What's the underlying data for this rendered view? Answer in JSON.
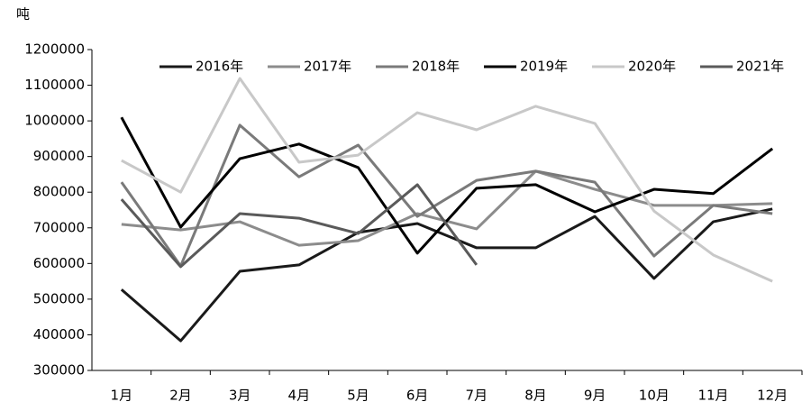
{
  "chart_data": {
    "type": "line",
    "unit_label": "吨",
    "categories": [
      "1月",
      "2月",
      "3月",
      "4月",
      "5月",
      "6月",
      "7月",
      "8月",
      "9月",
      "10月",
      "11月",
      "12月"
    ],
    "series": [
      {
        "name": "2016年",
        "color": "#1a1a1a",
        "values": [
          527000,
          383000,
          578000,
          596000,
          687000,
          712000,
          644000,
          644000,
          732000,
          558000,
          717000,
          753000
        ]
      },
      {
        "name": "2017年",
        "color": "#8c8c8c",
        "values": [
          710000,
          694000,
          717000,
          651000,
          664000,
          740000,
          697000,
          859000,
          808000,
          763000,
          763000,
          768000
        ]
      },
      {
        "name": "2018年",
        "color": "#7a7a7a",
        "values": [
          828000,
          593000,
          988000,
          843000,
          932000,
          732000,
          833000,
          859000,
          828000,
          621000,
          763000,
          740000
        ]
      },
      {
        "name": "2019年",
        "color": "#000000",
        "values": [
          1010000,
          702000,
          894000,
          935000,
          869000,
          629000,
          811000,
          821000,
          745000,
          808000,
          796000,
          922000
        ]
      },
      {
        "name": "2020年",
        "color": "#c8c8c8",
        "values": [
          889000,
          800000,
          1119000,
          884000,
          904000,
          1023000,
          975000,
          1041000,
          993000,
          747000,
          624000,
          550000
        ]
      },
      {
        "name": "2021年",
        "color": "#5a5a5a",
        "values": [
          780000,
          591000,
          740000,
          727000,
          684000,
          821000,
          596000,
          null,
          null,
          null,
          null,
          null
        ]
      }
    ],
    "ylim": [
      300000,
      1200000
    ],
    "yticks": [
      300000,
      400000,
      500000,
      600000,
      700000,
      800000,
      900000,
      1000000,
      1100000,
      1200000
    ],
    "grid": false,
    "legend": "top"
  }
}
